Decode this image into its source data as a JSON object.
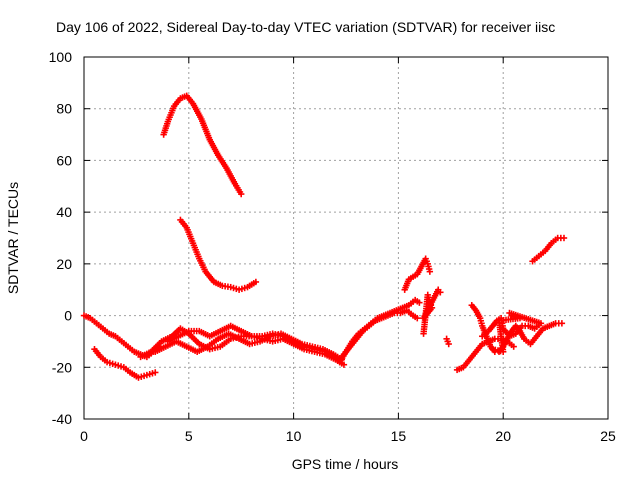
{
  "chart_data": {
    "type": "scatter",
    "title": "Day 106 of 2022, Sidereal Day-to-day VTEC variation (SDTVAR) for receiver iisc",
    "xlabel": "GPS time / hours",
    "ylabel": "SDTVAR / TECUs",
    "xlim": [
      0,
      25
    ],
    "ylim": [
      -40,
      100
    ],
    "xticks": [
      0,
      5,
      10,
      15,
      20,
      25
    ],
    "yticks": [
      -40,
      -20,
      0,
      20,
      40,
      60,
      80,
      100
    ],
    "xtick_labels": [
      "0",
      "5",
      "10",
      "15",
      "20",
      "25"
    ],
    "ytick_labels": [
      "-40",
      "-20",
      "0",
      "20",
      "40",
      "60",
      "80",
      "100"
    ],
    "grid": true,
    "marker": "+",
    "color": "#ff0000",
    "series": [
      {
        "name": "arc-high",
        "points": [
          [
            3.8,
            70
          ],
          [
            4.0,
            75
          ],
          [
            4.3,
            81
          ],
          [
            4.6,
            84
          ],
          [
            4.9,
            85
          ],
          [
            5.2,
            82
          ],
          [
            5.6,
            76
          ],
          [
            6.0,
            68
          ],
          [
            6.4,
            62
          ],
          [
            6.8,
            57
          ],
          [
            7.2,
            51
          ],
          [
            7.5,
            47
          ]
        ]
      },
      {
        "name": "arc-mid",
        "points": [
          [
            4.6,
            37
          ],
          [
            4.9,
            34
          ],
          [
            5.2,
            28
          ],
          [
            5.5,
            22
          ],
          [
            5.8,
            17
          ],
          [
            6.2,
            13
          ],
          [
            6.6,
            11.5
          ],
          [
            7.0,
            11
          ],
          [
            7.4,
            10
          ],
          [
            7.8,
            11
          ],
          [
            8.2,
            13
          ]
        ]
      },
      {
        "name": "arc-low-left",
        "points": [
          [
            0.5,
            -13
          ],
          [
            0.8,
            -16
          ],
          [
            1.1,
            -18
          ],
          [
            1.5,
            -19
          ],
          [
            1.9,
            -20
          ],
          [
            2.2,
            -22
          ],
          [
            2.6,
            -24
          ],
          [
            3.0,
            -23
          ],
          [
            3.4,
            -22
          ]
        ]
      },
      {
        "name": "arc-zero-start",
        "points": [
          [
            0.0,
            0
          ],
          [
            0.3,
            -1
          ],
          [
            0.6,
            -3
          ],
          [
            0.9,
            -5
          ],
          [
            1.2,
            -7
          ],
          [
            1.5,
            -8
          ],
          [
            1.8,
            -10
          ],
          [
            2.1,
            -12
          ],
          [
            2.4,
            -14
          ],
          [
            2.7,
            -15
          ],
          [
            3.0,
            -16
          ],
          [
            3.3,
            -14
          ],
          [
            3.6,
            -12
          ]
        ]
      },
      {
        "name": "wave-a",
        "points": [
          [
            2.7,
            -16
          ],
          [
            3.2,
            -14
          ],
          [
            3.7,
            -10
          ],
          [
            4.2,
            -8
          ],
          [
            4.6,
            -5
          ],
          [
            5.0,
            -7
          ],
          [
            5.5,
            -11
          ],
          [
            6.0,
            -13
          ],
          [
            6.5,
            -12
          ],
          [
            7.0,
            -9
          ],
          [
            7.5,
            -8
          ],
          [
            8.0,
            -8
          ],
          [
            8.5,
            -9
          ],
          [
            9.0,
            -10
          ],
          [
            9.5,
            -9
          ],
          [
            10.0,
            -11
          ],
          [
            10.5,
            -13
          ],
          [
            11.0,
            -14
          ],
          [
            11.5,
            -15
          ],
          [
            12.0,
            -17
          ],
          [
            12.4,
            -19
          ]
        ]
      },
      {
        "name": "wave-b",
        "points": [
          [
            3.4,
            -14
          ],
          [
            3.9,
            -12
          ],
          [
            4.4,
            -10
          ],
          [
            4.9,
            -12
          ],
          [
            5.4,
            -14
          ],
          [
            5.9,
            -12
          ],
          [
            6.4,
            -9
          ],
          [
            6.9,
            -7
          ],
          [
            7.4,
            -9
          ],
          [
            7.9,
            -11
          ],
          [
            8.4,
            -10
          ],
          [
            8.9,
            -8
          ],
          [
            9.4,
            -7
          ],
          [
            9.9,
            -9
          ],
          [
            10.4,
            -11
          ],
          [
            10.9,
            -12
          ],
          [
            11.4,
            -13
          ],
          [
            11.9,
            -15
          ],
          [
            12.3,
            -17
          ]
        ]
      },
      {
        "name": "wave-c",
        "points": [
          [
            4.0,
            -10
          ],
          [
            4.5,
            -8
          ],
          [
            5.0,
            -6
          ],
          [
            5.5,
            -6
          ],
          [
            6.0,
            -8
          ],
          [
            6.5,
            -6
          ],
          [
            7.0,
            -4
          ],
          [
            7.5,
            -6
          ],
          [
            8.0,
            -8
          ],
          [
            8.5,
            -8
          ],
          [
            9.0,
            -7
          ],
          [
            9.5,
            -8
          ],
          [
            10.0,
            -10
          ],
          [
            10.5,
            -12
          ],
          [
            11.0,
            -13
          ],
          [
            11.5,
            -14
          ],
          [
            12.0,
            -16
          ]
        ]
      },
      {
        "name": "rise-12-15",
        "points": [
          [
            12.2,
            -18
          ],
          [
            12.5,
            -14
          ],
          [
            12.8,
            -10
          ],
          [
            13.1,
            -7
          ],
          [
            13.4,
            -5
          ],
          [
            13.7,
            -3
          ],
          [
            14.0,
            -1
          ],
          [
            14.3,
            0
          ],
          [
            14.6,
            1
          ],
          [
            14.9,
            2
          ],
          [
            15.2,
            3
          ],
          [
            15.5,
            4
          ],
          [
            15.8,
            6
          ],
          [
            16.0,
            5
          ]
        ]
      },
      {
        "name": "rise-12-15-b",
        "points": [
          [
            12.4,
            -15
          ],
          [
            12.7,
            -12
          ],
          [
            13.0,
            -9
          ],
          [
            13.3,
            -6
          ],
          [
            13.6,
            -4
          ],
          [
            13.9,
            -2
          ],
          [
            14.2,
            -1
          ],
          [
            14.5,
            0
          ],
          [
            14.8,
            1
          ],
          [
            15.1,
            1
          ],
          [
            15.4,
            2
          ],
          [
            15.7,
            0
          ],
          [
            15.9,
            -1
          ]
        ]
      },
      {
        "name": "scatter-15-17",
        "points": [
          [
            15.3,
            10
          ],
          [
            15.5,
            14
          ],
          [
            15.7,
            15
          ],
          [
            15.9,
            16
          ],
          [
            16.3,
            22
          ],
          [
            16.4,
            20
          ],
          [
            16.5,
            17
          ],
          [
            16.2,
            -7
          ],
          [
            16.4,
            8
          ],
          [
            16.5,
            5
          ],
          [
            16.6,
            3
          ],
          [
            16.2,
            -1
          ],
          [
            16.9,
            10
          ],
          [
            17.0,
            9
          ],
          [
            17.3,
            -9
          ],
          [
            17.4,
            -11
          ]
        ]
      },
      {
        "name": "cluster-18-21",
        "points": [
          [
            17.8,
            -21
          ],
          [
            18.1,
            -20
          ],
          [
            18.4,
            -17
          ],
          [
            18.7,
            -14
          ],
          [
            19.0,
            -11
          ],
          [
            19.3,
            -10
          ],
          [
            19.6,
            -9
          ],
          [
            19.9,
            -9
          ],
          [
            20.2,
            -10
          ],
          [
            20.5,
            -12
          ]
        ]
      },
      {
        "name": "cluster-18-21-b",
        "points": [
          [
            18.5,
            4
          ],
          [
            18.7,
            2
          ],
          [
            18.9,
            -1
          ],
          [
            19.0,
            -4
          ],
          [
            19.2,
            -8
          ],
          [
            19.4,
            -12
          ],
          [
            19.6,
            -14
          ],
          [
            19.8,
            -14
          ],
          [
            20.0,
            -12
          ],
          [
            20.2,
            -9
          ],
          [
            20.4,
            -6
          ],
          [
            20.6,
            -4
          ],
          [
            20.8,
            -6
          ],
          [
            21.0,
            -9
          ],
          [
            21.3,
            -11
          ],
          [
            21.6,
            -8
          ],
          [
            21.9,
            -5
          ],
          [
            22.2,
            -4
          ],
          [
            22.5,
            -3
          ],
          [
            22.8,
            -3
          ]
        ]
      },
      {
        "name": "cluster-18-21-c",
        "points": [
          [
            19.0,
            -8
          ],
          [
            19.3,
            -6
          ],
          [
            19.5,
            -4
          ],
          [
            19.7,
            -2
          ],
          [
            19.9,
            -1
          ],
          [
            20.0,
            -5
          ],
          [
            20.3,
            -8
          ],
          [
            20.6,
            -7
          ],
          [
            20.9,
            -4
          ],
          [
            21.2,
            -4
          ],
          [
            21.5,
            -5
          ],
          [
            21.8,
            -3
          ],
          [
            20.3,
            1
          ],
          [
            20.4,
            0
          ],
          [
            20.8,
            -1
          ],
          [
            19.8,
            -2
          ],
          [
            20.0,
            -14
          ],
          [
            19.5,
            -13
          ]
        ]
      },
      {
        "name": "late-rise",
        "points": [
          [
            21.4,
            21
          ],
          [
            21.7,
            23
          ],
          [
            22.0,
            25
          ],
          [
            22.3,
            28
          ],
          [
            22.6,
            30
          ],
          [
            22.9,
            30
          ]
        ]
      }
    ]
  }
}
